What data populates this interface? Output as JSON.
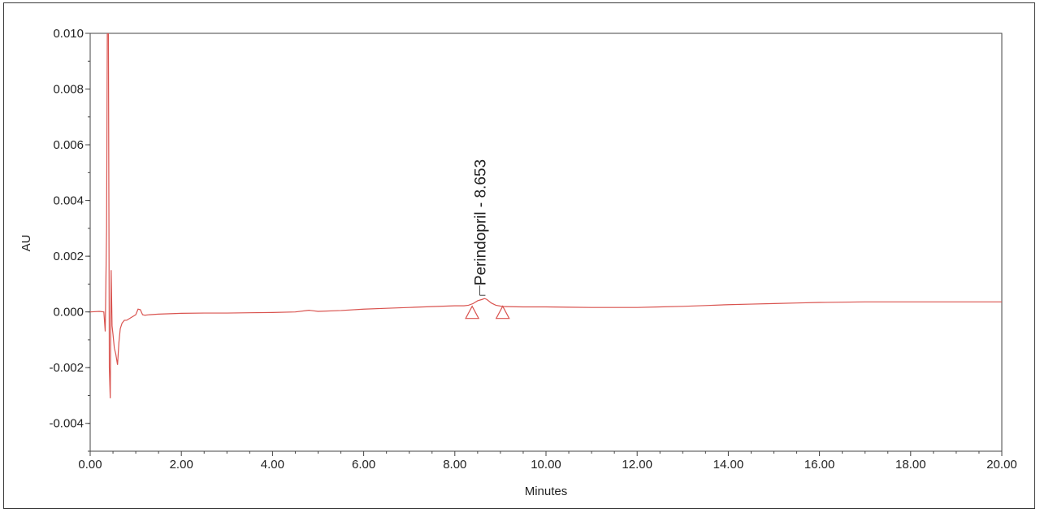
{
  "chart_data": {
    "type": "line",
    "title": "",
    "xlabel": "Minutes",
    "ylabel": "AU",
    "xlim": [
      0,
      20
    ],
    "ylim": [
      -0.005,
      0.01
    ],
    "x_ticks": [
      "0.00",
      "2.00",
      "4.00",
      "6.00",
      "8.00",
      "10.00",
      "12.00",
      "14.00",
      "16.00",
      "18.00",
      "20.00"
    ],
    "y_ticks": [
      "0.010",
      "0.008",
      "0.006",
      "0.004",
      "0.002",
      "0.000",
      "-0.002",
      "-0.004"
    ],
    "grid": false,
    "line_color": "#d9534f",
    "series": [
      {
        "x": [
          0.0,
          0.2,
          0.3,
          0.33,
          0.36,
          0.38,
          0.4,
          0.42,
          0.44,
          0.46,
          0.48,
          0.5,
          0.53,
          0.56,
          0.6,
          0.63,
          0.66,
          0.7,
          0.75,
          0.8,
          0.9,
          1.0,
          1.05,
          1.1,
          1.15,
          1.2,
          1.3,
          1.5,
          2.0,
          2.5,
          3.0,
          3.5,
          4.0,
          4.5,
          4.8,
          4.9,
          5.0,
          5.5,
          6.0,
          6.5,
          7.0,
          7.5,
          8.0,
          8.2,
          8.3,
          8.4,
          8.5,
          8.6,
          8.653,
          8.7,
          8.8,
          8.9,
          9.0,
          9.1,
          9.5,
          10.0,
          10.5,
          11.0,
          11.5,
          12.0,
          12.5,
          13.0,
          13.5,
          14.0,
          14.5,
          15.0,
          15.5,
          16.0,
          16.5,
          17.0,
          17.5,
          18.0,
          18.5,
          19.0,
          19.5,
          20.0
        ],
        "y": [
          0.0,
          2e-05,
          0.0,
          -0.0007,
          0.003,
          0.012,
          0.01,
          -0.002,
          -0.0031,
          0.0015,
          -0.0005,
          -0.0008,
          -0.0013,
          -0.0015,
          -0.0019,
          -0.0011,
          -0.0006,
          -0.0004,
          -0.0003,
          -0.0003,
          -0.0002,
          -0.0001,
          0.0001,
          8e-05,
          -0.0001,
          -0.00012,
          -0.0001,
          -8e-05,
          -5e-05,
          -4e-05,
          -4e-05,
          -3e-05,
          -2e-05,
          0.0,
          6e-05,
          4e-05,
          2e-05,
          5e-05,
          0.0001,
          0.00013,
          0.00016,
          0.00019,
          0.00022,
          0.00022,
          0.00024,
          0.0003,
          0.0004,
          0.00045,
          0.00048,
          0.00045,
          0.00032,
          0.00024,
          0.00021,
          0.00019,
          0.00018,
          0.00018,
          0.00017,
          0.00016,
          0.00016,
          0.00016,
          0.00018,
          0.0002,
          0.00023,
          0.00026,
          0.00028,
          0.0003,
          0.00032,
          0.00034,
          0.00035,
          0.00036,
          0.00036,
          0.00036,
          0.00036,
          0.00036,
          0.00036,
          0.00036
        ]
      }
    ],
    "annotations": [
      {
        "text": "Perindopril - 8.653",
        "x": 8.653,
        "y": 0.00048
      }
    ],
    "integration_markers": [
      {
        "x": 8.38,
        "y": 0.0
      },
      {
        "x": 9.05,
        "y": 0.0
      }
    ]
  }
}
